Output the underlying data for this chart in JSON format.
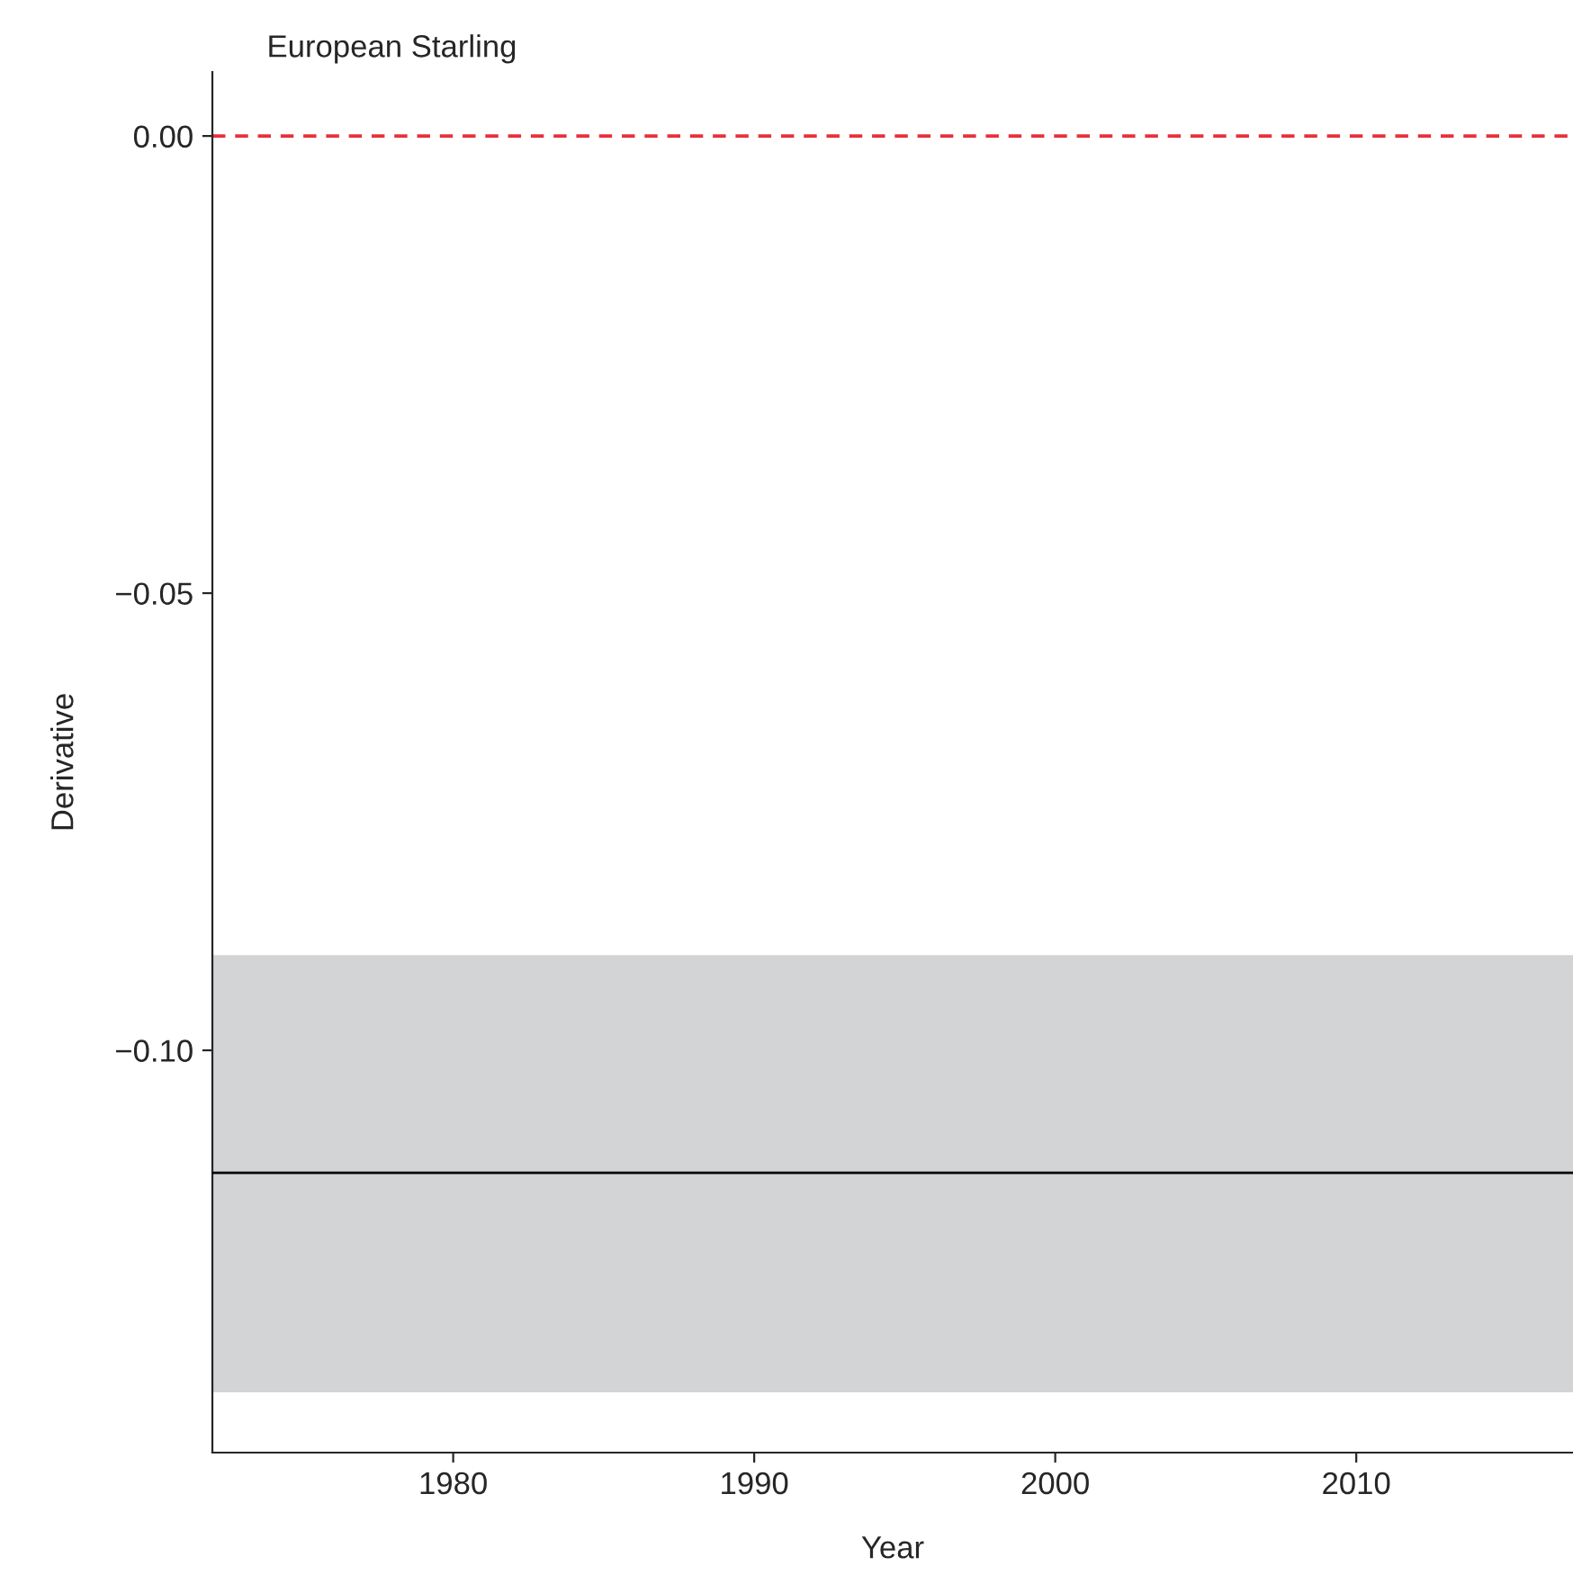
{
  "chart_data": {
    "type": "line",
    "title": "European Starling",
    "xlabel": "Year",
    "ylabel": "Derivative",
    "series": [
      {
        "color": "#000000",
        "x": [
          1972,
          2017.2
        ],
        "values": [
          -0.1134,
          -0.1134
        ],
        "lower": [
          -0.1374,
          -0.1374
        ],
        "upper": [
          -0.0896,
          -0.0896
        ]
      }
    ],
    "xlim": [
      1972,
      2017.2
    ],
    "xticks": [
      1980,
      1990,
      2000,
      2010
    ],
    "ylim": [
      -0.144,
      0.007
    ],
    "yticks": [
      {
        "value": 0,
        "label": "0.00"
      },
      {
        "value": -0.05,
        "label": "−0.05"
      },
      {
        "value": -0.1,
        "label": "−0.10"
      }
    ],
    "ref_lines": [
      {
        "axis": "y",
        "value": 0,
        "color": "#e8303a",
        "line_style": "dashed"
      }
    ],
    "grid": false,
    "legend": false,
    "line_style": "solid",
    "marker": "none"
  }
}
